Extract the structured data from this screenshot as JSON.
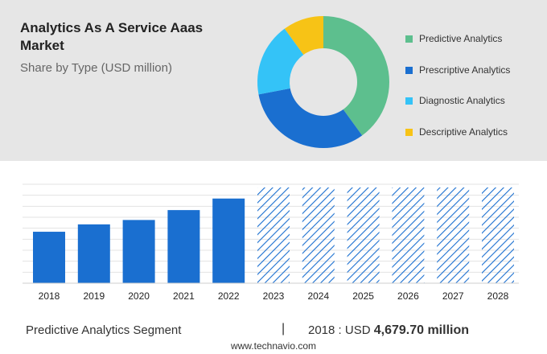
{
  "header": {
    "title": "Analytics As A Service Aaas Market",
    "subtitle": "Share by Type (USD million)"
  },
  "legend": [
    {
      "label": "Predictive Analytics",
      "color": "#5dbf8e"
    },
    {
      "label": "Prescriptive Analytics",
      "color": "#1a6fd0"
    },
    {
      "label": "Diagnostic Analytics",
      "color": "#34c3f7"
    },
    {
      "label": "Descriptive Analytics",
      "color": "#f7c316"
    }
  ],
  "chart_data": [
    {
      "type": "pie",
      "subtype": "donut",
      "title": "Share by Type (USD million)",
      "labels": [
        "Predictive Analytics",
        "Prescriptive Analytics",
        "Diagnostic Analytics",
        "Descriptive Analytics"
      ],
      "values": [
        40,
        32,
        18,
        10
      ],
      "colors": [
        "#5dbf8e",
        "#1a6fd0",
        "#34c3f7",
        "#f7c316"
      ]
    },
    {
      "type": "bar",
      "categories": [
        "2018",
        "2019",
        "2020",
        "2021",
        "2022",
        "2023",
        "2024",
        "2025",
        "2026",
        "2027",
        "2028"
      ],
      "values": [
        4679.7,
        5350,
        5750,
        6650,
        7700,
        null,
        null,
        null,
        null,
        null,
        null
      ],
      "forecast_categories": [
        "2023",
        "2024",
        "2025",
        "2026",
        "2027",
        "2028"
      ],
      "bar_color": "#1a6fd0",
      "forecast_style": "hatched",
      "grid": true,
      "ylim": [
        0,
        9000
      ]
    }
  ],
  "footer": {
    "segment": "Predictive Analytics Segment",
    "divider": "|",
    "year_label": "2018 : USD ",
    "value": "4,679.70 million"
  },
  "source": "www.technavio.com"
}
